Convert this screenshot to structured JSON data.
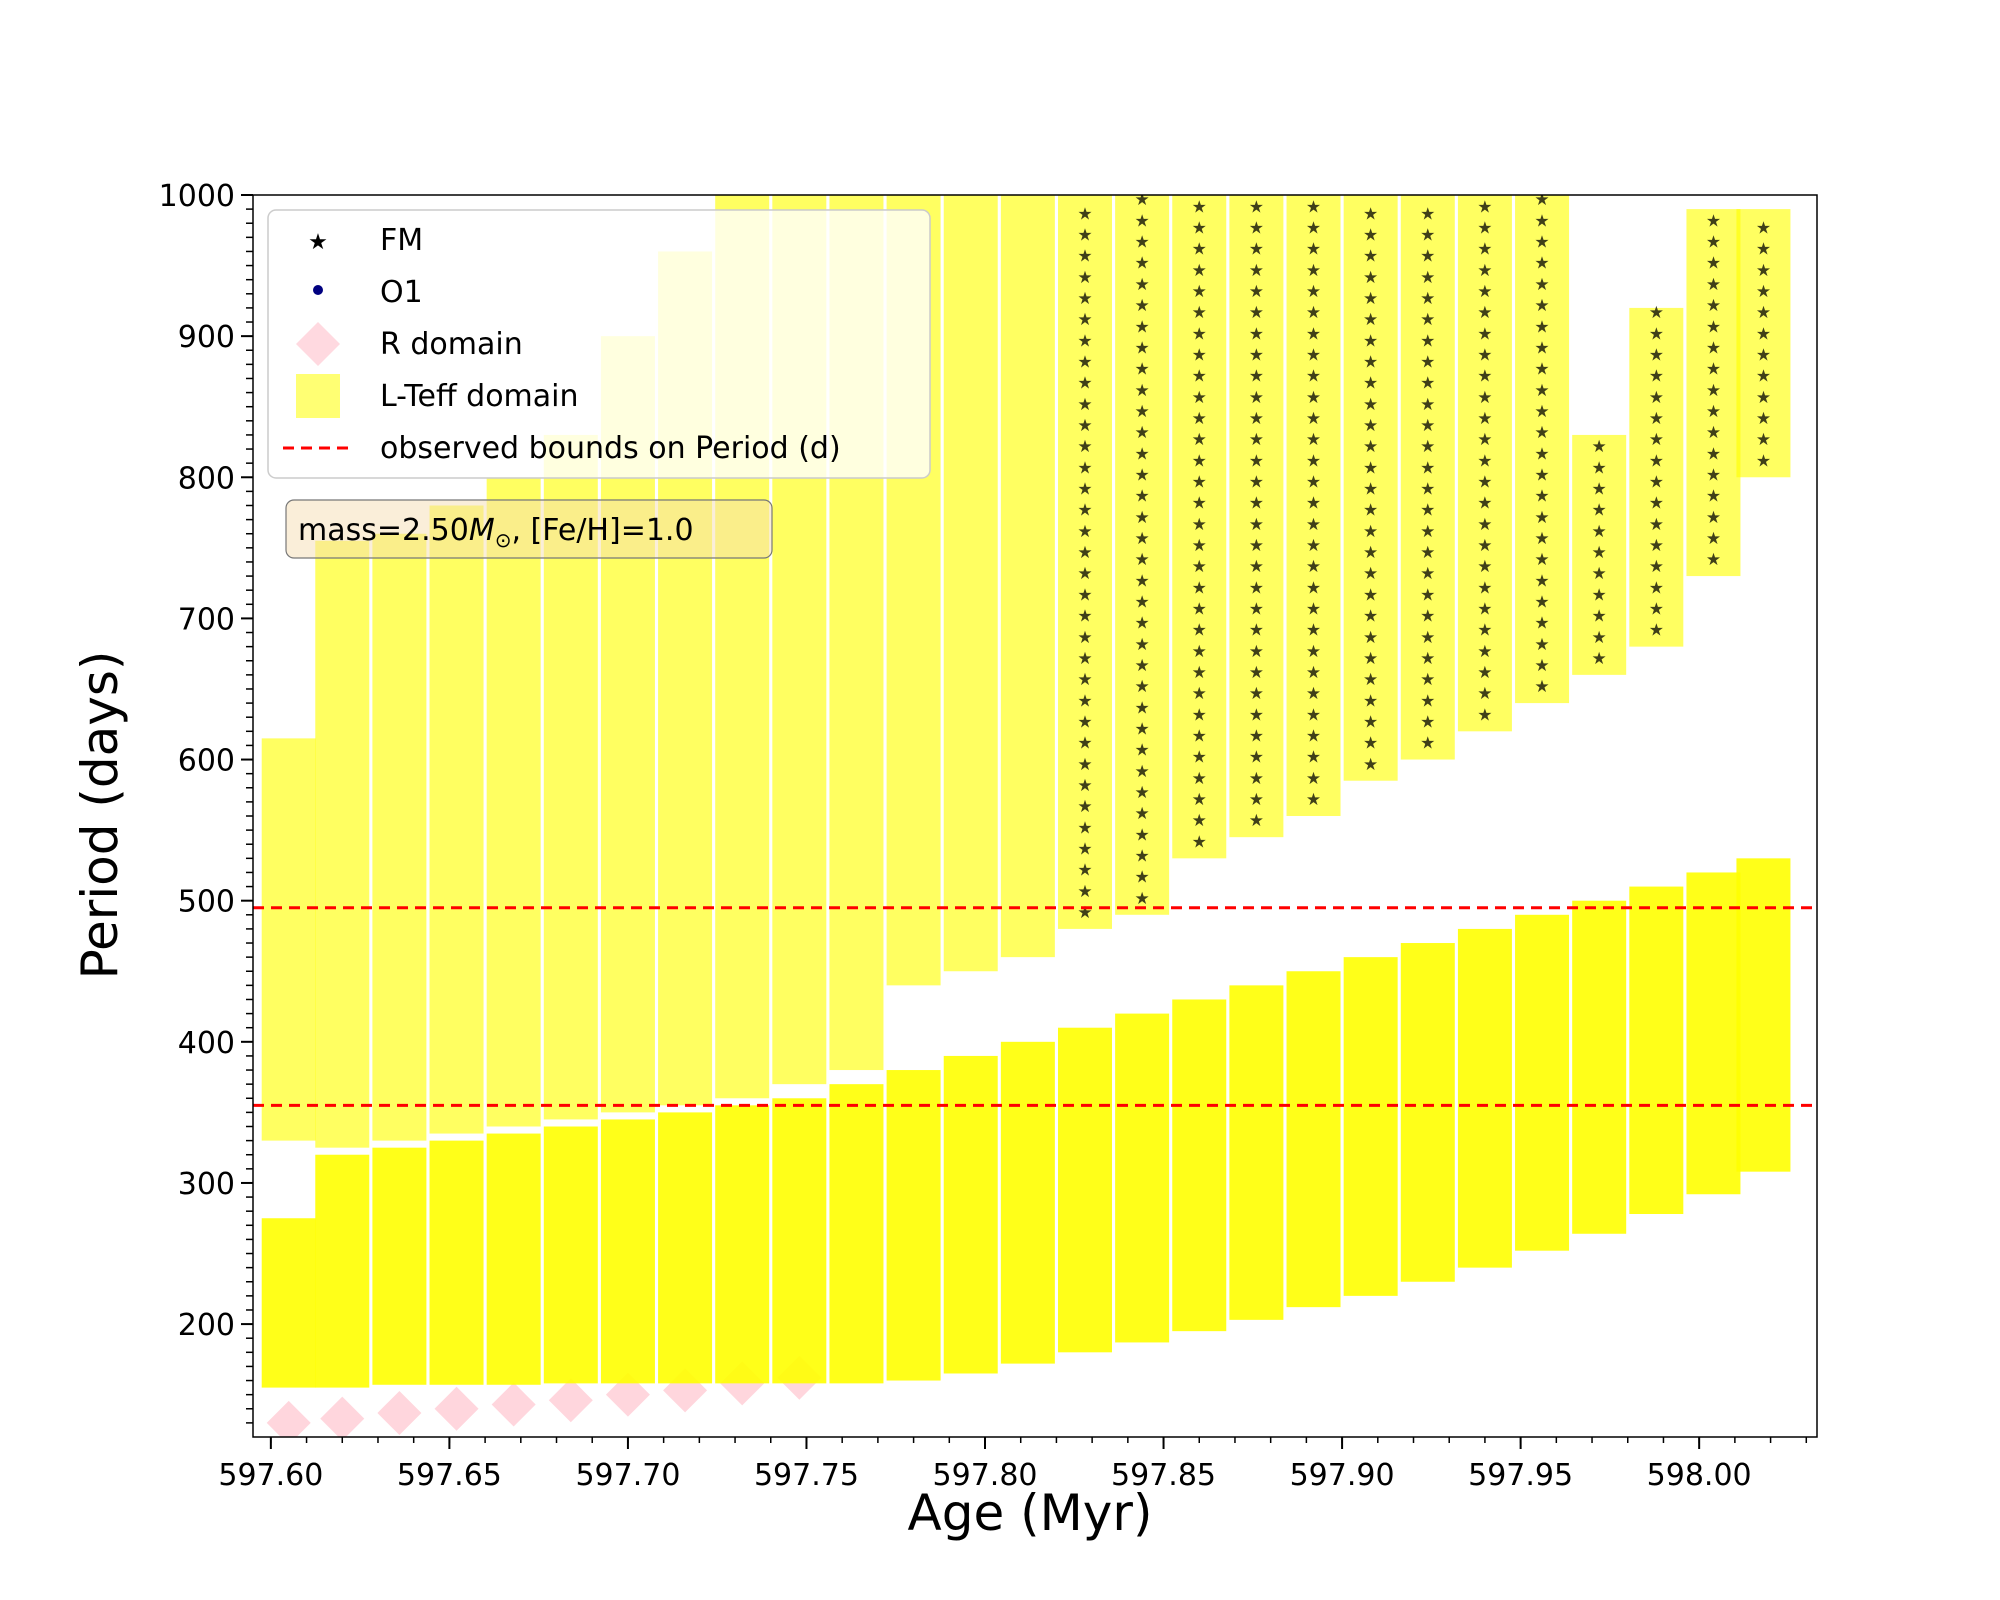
{
  "chart_data": {
    "type": "scatter",
    "title": "",
    "xlabel": "Age (Myr)",
    "ylabel": "Period (days)",
    "xlim": [
      597.595,
      598.033
    ],
    "ylim": [
      120,
      1000
    ],
    "xticks": [
      597.6,
      597.65,
      597.7,
      597.75,
      597.8,
      597.85,
      597.9,
      597.95,
      598.0
    ],
    "xtick_labels": [
      "597.60",
      "597.65",
      "597.70",
      "597.75",
      "597.80",
      "597.85",
      "597.90",
      "597.95",
      "598.00"
    ],
    "yticks": [
      200,
      300,
      400,
      500,
      600,
      700,
      800,
      900,
      1000
    ],
    "ytick_labels": [
      "200",
      "300",
      "400",
      "500",
      "600",
      "700",
      "800",
      "900",
      "1000"
    ],
    "minor_ticks": true,
    "grid": false,
    "legend_position": "top-left",
    "legend": [
      {
        "label": "FM",
        "marker": "star",
        "color": "#000000"
      },
      {
        "label": "O1",
        "marker": "circle",
        "color": "#000080"
      },
      {
        "label": "R domain",
        "marker": "diamond",
        "color": "#ffc0cb"
      },
      {
        "label": "L-Teff domain",
        "marker": "square",
        "color": "#ffff00"
      },
      {
        "label": "observed bounds on Period (d)",
        "marker": "dashed-line",
        "color": "#ff0000"
      }
    ],
    "annotation": {
      "prefix": "mass=2.50",
      "symbol": "M",
      "subscript": "⊙",
      "suffix": ", [Fe/H]=1.0"
    },
    "observed_bounds": [
      355,
      495
    ],
    "columns": [
      {
        "age": 597.605,
        "fo": [
          155,
          275
        ],
        "o1": [
          330,
          615
        ],
        "r_diamond": 130
      },
      {
        "age": 597.62,
        "fo": [
          155,
          320
        ],
        "o1": [
          325,
          755
        ],
        "r_diamond": 133
      },
      {
        "age": 597.636,
        "fo": [
          157,
          325
        ],
        "o1": [
          330,
          760
        ],
        "r_diamond": 137
      },
      {
        "age": 597.652,
        "fo": [
          157,
          330
        ],
        "o1": [
          335,
          780
        ],
        "r_diamond": 140
      },
      {
        "age": 597.668,
        "fo": [
          157,
          335
        ],
        "o1": [
          340,
          800
        ],
        "r_diamond": 143
      },
      {
        "age": 597.684,
        "fo": [
          158,
          340
        ],
        "o1": [
          345,
          830
        ],
        "r_diamond": 146
      },
      {
        "age": 597.7,
        "fo": [
          158,
          345
        ],
        "o1": [
          350,
          900
        ],
        "r_diamond": 150
      },
      {
        "age": 597.716,
        "fo": [
          158,
          350
        ],
        "o1": [
          355,
          960
        ],
        "r_diamond": 153
      },
      {
        "age": 597.732,
        "fo": [
          158,
          355
        ],
        "o1": [
          360,
          1000
        ],
        "r_diamond": 158
      },
      {
        "age": 597.748,
        "fo": [
          158,
          360
        ],
        "o1": [
          370,
          1000
        ],
        "r_diamond": 162
      },
      {
        "age": 597.764,
        "fo": [
          158,
          370
        ],
        "o1": [
          380,
          1000
        ]
      },
      {
        "age": 597.78,
        "fo": [
          160,
          380
        ],
        "o1": [
          440,
          1000
        ]
      },
      {
        "age": 597.796,
        "fo": [
          165,
          390
        ],
        "o1": [
          450,
          1000
        ]
      },
      {
        "age": 597.812,
        "fo": [
          172,
          400
        ],
        "o1": [
          460,
          1000
        ]
      },
      {
        "age": 597.828,
        "fo": [
          180,
          410
        ],
        "o1": [
          480,
          1000
        ]
      },
      {
        "age": 597.844,
        "fo": [
          187,
          420
        ],
        "o1": [
          490,
          1000
        ]
      },
      {
        "age": 597.86,
        "fo": [
          195,
          430
        ],
        "o1": [
          530,
          1000
        ]
      },
      {
        "age": 597.876,
        "fo": [
          203,
          440
        ],
        "o1": [
          545,
          1000
        ]
      },
      {
        "age": 597.892,
        "fo": [
          212,
          450
        ],
        "o1": [
          560,
          1000
        ]
      },
      {
        "age": 597.908,
        "fo": [
          220,
          460
        ],
        "o1": [
          585,
          1000
        ]
      },
      {
        "age": 597.924,
        "fo": [
          230,
          470
        ],
        "o1": [
          600,
          1000
        ]
      },
      {
        "age": 597.94,
        "fo": [
          240,
          480
        ],
        "o1": [
          620,
          1000
        ]
      },
      {
        "age": 597.956,
        "fo": [
          252,
          490
        ],
        "o1": [
          640,
          1000
        ]
      },
      {
        "age": 597.972,
        "fo": [
          264,
          500
        ],
        "o1": [
          660,
          830
        ]
      },
      {
        "age": 597.988,
        "fo": [
          278,
          510
        ],
        "o1": [
          680,
          920
        ]
      },
      {
        "age": 598.004,
        "fo": [
          292,
          520
        ],
        "o1": [
          730,
          990
        ]
      },
      {
        "age": 598.018,
        "fo": [
          308,
          530
        ],
        "o1": [
          800,
          990
        ]
      }
    ]
  }
}
